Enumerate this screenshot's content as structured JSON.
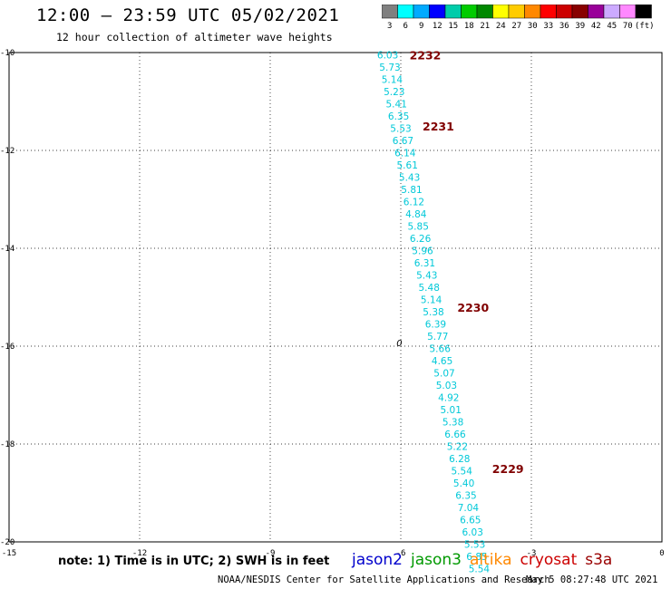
{
  "header": {
    "title": "12:00 – 23:59 UTC 05/02/2021",
    "subtitle": "12 hour collection of altimeter wave heights"
  },
  "colorbar": {
    "labels": [
      "3",
      "6",
      "9",
      "12",
      "15",
      "18",
      "21",
      "24",
      "27",
      "30",
      "33",
      "36",
      "39",
      "42",
      "45",
      "70",
      "(ft)"
    ],
    "colors": [
      "#808080",
      "#00ffff",
      "#00aaff",
      "#0000ff",
      "#00ccaa",
      "#00cc00",
      "#008800",
      "#ffff00",
      "#ffcc00",
      "#ff8800",
      "#ff0000",
      "#cc0000",
      "#880000",
      "#990099",
      "#ccaaff",
      "#ff88ff",
      "#000000"
    ]
  },
  "map": {
    "lon_range": [
      -15,
      0
    ],
    "lat_range": [
      -20,
      -10
    ],
    "x_ticks": [
      "-15",
      "-12",
      "-9",
      "-6",
      "-3",
      "0"
    ],
    "y_ticks": [
      "-10",
      "-12",
      "-14",
      "-16",
      "-18",
      "-20"
    ],
    "marker": "0"
  },
  "chart_data": {
    "type": "scatter",
    "x": [],
    "values": [
      "6.03",
      "5.73",
      "5.14",
      "5.23",
      "5.41",
      "6.35",
      "5.53",
      "6.67",
      "6.14",
      "5.61",
      "5.43",
      "5.81",
      "6.12",
      "4.84",
      "5.85",
      "6.26",
      "5.96",
      "6.31",
      "5.43",
      "5.48",
      "5.14",
      "5.38",
      "6.39",
      "5.77",
      "5.66",
      "4.65",
      "5.07",
      "5.03",
      "4.92",
      "5.01",
      "5.38",
      "6.66",
      "5.22",
      "6.28",
      "5.54",
      "5.40",
      "6.35",
      "7.04",
      "6.65",
      "6.03",
      "5.53",
      "6.85",
      "5.54"
    ],
    "lat": [
      -10.05,
      -10.3,
      -10.55,
      -10.8,
      -11.05,
      -11.3,
      -11.55,
      -11.8,
      -12.05,
      -12.3,
      -12.55,
      -12.8,
      -13.05,
      -13.3,
      -13.55,
      -13.8,
      -14.05,
      -14.3,
      -14.55,
      -14.8,
      -15.05,
      -15.3,
      -15.55,
      -15.8,
      -16.05,
      -16.3,
      -16.55,
      -16.8,
      -17.05,
      -17.3,
      -17.55,
      -17.8,
      -18.05,
      -18.3,
      -18.55,
      -18.8,
      -19.05,
      -19.3,
      -19.55,
      -19.8,
      -20.05,
      -20.3,
      -20.55
    ],
    "lon": [
      -6.3,
      -6.25,
      -6.2,
      -6.15,
      -6.1,
      -6.05,
      -6.0,
      -5.95,
      -5.9,
      -5.85,
      -5.8,
      -5.75,
      -5.7,
      -5.65,
      -5.6,
      -5.55,
      -5.5,
      -5.45,
      -5.4,
      -5.35,
      -5.3,
      -5.25,
      -5.2,
      -5.15,
      -5.1,
      -5.05,
      -5.0,
      -4.95,
      -4.9,
      -4.85,
      -4.8,
      -4.75,
      -4.7,
      -4.65,
      -4.6,
      -4.55,
      -4.5,
      -4.45,
      -4.4,
      -4.35,
      -4.3,
      -4.25,
      -4.2
    ],
    "times": [
      {
        "label": "2232",
        "lat": -10.05,
        "lon": -5.8
      },
      {
        "label": "2231",
        "lat": -11.5,
        "lon": -5.5
      },
      {
        "label": "2230",
        "lat": -15.2,
        "lon": -4.7
      },
      {
        "label": "2229",
        "lat": -18.5,
        "lon": -3.9
      }
    ]
  },
  "notes": {
    "note": "note: 1) Time is in UTC; 2) SWH is in feet",
    "credit": "NOAA/NESDIS Center for Satellite Applications and Research",
    "date": "May  5 08:27:48 UTC 2021"
  },
  "legend": [
    {
      "label": "jason2",
      "color": "#0000cc"
    },
    {
      "label": "jason3",
      "color": "#009900"
    },
    {
      "label": "altika",
      "color": "#ff8800"
    },
    {
      "label": "cryosat",
      "color": "#cc0000"
    },
    {
      "label": "s3a",
      "color": "#990000"
    }
  ]
}
